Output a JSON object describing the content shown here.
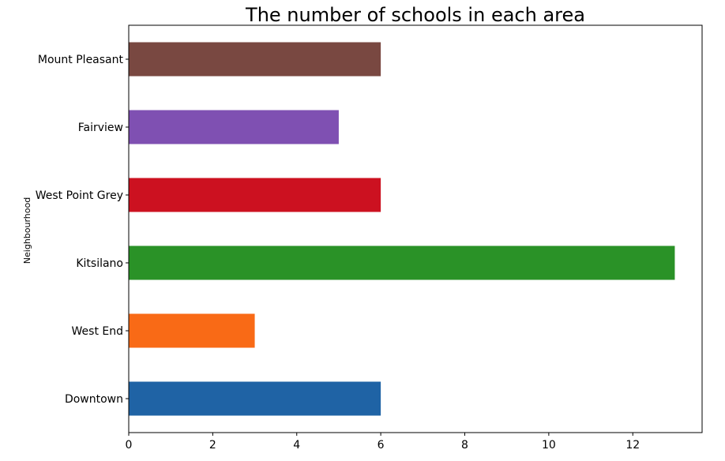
{
  "chart_data": {
    "type": "bar",
    "orientation": "horizontal",
    "title": "The number of schools in each area",
    "xlabel": "",
    "ylabel": "Neighbourhood",
    "categories": [
      "Downtown",
      "West End",
      "Kitsilano",
      "West Point Grey",
      "Fairview",
      "Mount Pleasant"
    ],
    "values": [
      6,
      3,
      13,
      6,
      5,
      6
    ],
    "colors": [
      "#1f63a5",
      "#f96a16",
      "#2a9227",
      "#cc1120",
      "#7f50b2",
      "#794841"
    ],
    "xlim": [
      0,
      13.65
    ],
    "xticks": [
      0,
      2,
      4,
      6,
      8,
      10,
      12
    ],
    "grid": false,
    "legend": "none"
  }
}
